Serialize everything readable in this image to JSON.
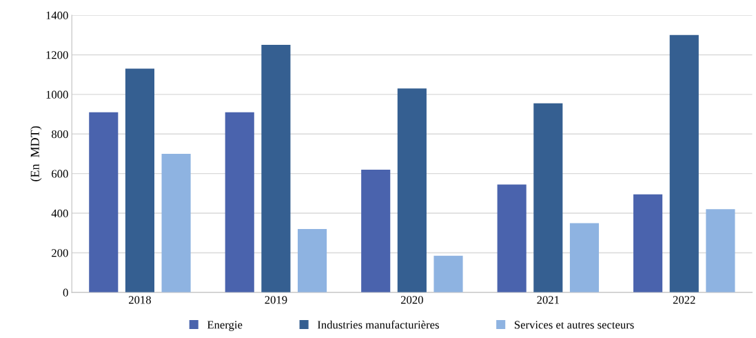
{
  "chart_data": {
    "type": "bar",
    "ylabel": "(En  MDT)",
    "categories": [
      "2018",
      "2019",
      "2020",
      "2021",
      "2022"
    ],
    "series": [
      {
        "name": "Energie",
        "color": "#4a63ad",
        "values": [
          910,
          910,
          620,
          545,
          495
        ]
      },
      {
        "name": "Industries manufacturières",
        "color": "#355f91",
        "values": [
          1130,
          1250,
          1030,
          955,
          1300
        ]
      },
      {
        "name": "Services et autres secteurs",
        "color": "#8eb3e1",
        "values": [
          700,
          320,
          185,
          350,
          420
        ]
      }
    ],
    "ylim": [
      0,
      1400
    ],
    "yticks": [
      0,
      200,
      400,
      600,
      800,
      1000,
      1200,
      1400
    ],
    "grid": "y",
    "legend": "bottom"
  }
}
